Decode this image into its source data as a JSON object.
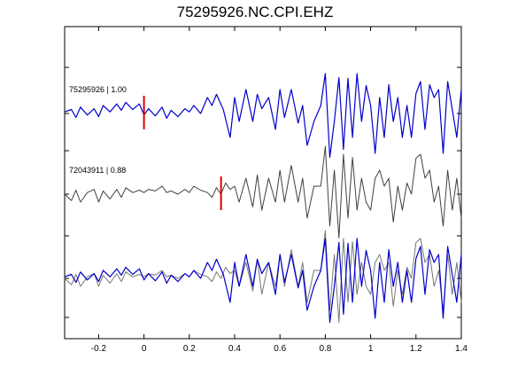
{
  "chart_data": {
    "type": "line",
    "title": "75295926.NC.CPI.EHZ",
    "xlim": [
      -0.35,
      1.4
    ],
    "x_ticks": [
      "-0.2",
      "0",
      "0.2",
      "0.4",
      "0.6",
      "0.8",
      "1",
      "1.2",
      "1.4"
    ],
    "x_tick_values": [
      -0.2,
      0,
      0.2,
      0.4,
      0.6,
      0.8,
      1,
      1.2,
      1.4
    ],
    "grid": false,
    "colors": {
      "master": "#0000cc",
      "other": "#404040",
      "pick": "#dd0000",
      "axis": "#000000"
    },
    "traces": [
      {
        "label": "75295926 | 1.00",
        "color": "master",
        "pick_time": 0.0,
        "row": 0
      },
      {
        "label": "72043911 | 0.88",
        "color": "other",
        "pick_time": 0.34,
        "row": 1
      },
      {
        "label": "",
        "color": "overlay",
        "pick_time": null,
        "row": 2
      }
    ],
    "waveforms": {
      "master_x": [
        -0.35,
        -0.32,
        -0.3,
        -0.28,
        -0.25,
        -0.22,
        -0.2,
        -0.18,
        -0.15,
        -0.12,
        -0.1,
        -0.08,
        -0.05,
        -0.02,
        0.0,
        0.02,
        0.05,
        0.08,
        0.1,
        0.12,
        0.15,
        0.18,
        0.2,
        0.22,
        0.25,
        0.28,
        0.3,
        0.32,
        0.35,
        0.38,
        0.4,
        0.42,
        0.45,
        0.48,
        0.5,
        0.52,
        0.55,
        0.58,
        0.6,
        0.62,
        0.65,
        0.68,
        0.7,
        0.72,
        0.75,
        0.78,
        0.8,
        0.82,
        0.84,
        0.86,
        0.88,
        0.9,
        0.92,
        0.94,
        0.96,
        0.98,
        1.0,
        1.02,
        1.04,
        1.06,
        1.08,
        1.1,
        1.12,
        1.14,
        1.16,
        1.18,
        1.2,
        1.22,
        1.24,
        1.26,
        1.28,
        1.3,
        1.32,
        1.34,
        1.36,
        1.38,
        1.4
      ],
      "master_y": [
        0.02,
        0.05,
        -0.05,
        0.08,
        -0.02,
        0.06,
        -0.04,
        0.1,
        0.02,
        0.12,
        0.04,
        0.14,
        0.05,
        0.12,
        -0.02,
        0.06,
        -0.03,
        0.08,
        -0.06,
        0.04,
        -0.04,
        0.06,
        0.02,
        0.1,
        0.0,
        0.2,
        0.1,
        0.24,
        0.05,
        -0.3,
        0.2,
        -0.1,
        0.3,
        -0.1,
        0.24,
        0.06,
        0.2,
        -0.2,
        0.3,
        -0.05,
        0.3,
        -0.12,
        0.1,
        -0.4,
        -0.1,
        0.1,
        0.5,
        -0.55,
        -0.1,
        0.45,
        -0.45,
        0.44,
        -0.3,
        0.5,
        -0.1,
        0.35,
        0.1,
        -0.5,
        0.2,
        -0.3,
        0.36,
        -0.1,
        0.2,
        -0.3,
        0.1,
        -0.3,
        0.25,
        0.4,
        -0.2,
        0.36,
        0.2,
        0.3,
        -0.5,
        0.4,
        0.05,
        -0.3,
        0.3
      ],
      "other_x": [
        -0.35,
        -0.32,
        -0.3,
        -0.28,
        -0.25,
        -0.22,
        -0.2,
        -0.18,
        -0.15,
        -0.12,
        -0.1,
        -0.08,
        -0.05,
        -0.02,
        0.0,
        0.02,
        0.05,
        0.08,
        0.1,
        0.12,
        0.15,
        0.18,
        0.2,
        0.22,
        0.25,
        0.28,
        0.3,
        0.32,
        0.34,
        0.36,
        0.38,
        0.4,
        0.42,
        0.45,
        0.48,
        0.5,
        0.52,
        0.55,
        0.58,
        0.6,
        0.62,
        0.65,
        0.68,
        0.7,
        0.72,
        0.75,
        0.78,
        0.8,
        0.82,
        0.84,
        0.86,
        0.88,
        0.9,
        0.92,
        0.94,
        0.96,
        0.98,
        1.0,
        1.02,
        1.04,
        1.06,
        1.08,
        1.1,
        1.12,
        1.14,
        1.16,
        1.18,
        1.2,
        1.22,
        1.24,
        1.26,
        1.28,
        1.3,
        1.32,
        1.34,
        1.36,
        1.38,
        1.4
      ],
      "other_y": [
        0.0,
        -0.08,
        0.05,
        -0.1,
        0.02,
        0.06,
        -0.1,
        0.04,
        -0.06,
        0.06,
        -0.04,
        0.08,
        0.02,
        0.05,
        0.02,
        0.06,
        0.04,
        0.1,
        0.02,
        0.04,
        0.0,
        0.06,
        0.02,
        0.1,
        0.05,
        0.02,
        -0.04,
        0.08,
        0.0,
        0.14,
        0.06,
        0.1,
        -0.1,
        0.2,
        -0.16,
        0.24,
        -0.2,
        0.2,
        -0.1,
        0.3,
        -0.1,
        0.36,
        -0.1,
        0.2,
        -0.3,
        0.1,
        0.1,
        0.6,
        -0.4,
        0.3,
        -0.55,
        0.5,
        -0.3,
        0.46,
        -0.2,
        0.2,
        -0.1,
        -0.2,
        0.2,
        0.3,
        0.1,
        0.2,
        -0.35,
        0.1,
        -0.2,
        0.14,
        0.0,
        0.45,
        0.5,
        0.2,
        0.3,
        -0.1,
        0.1,
        -0.4,
        0.3,
        -0.2,
        0.2,
        -0.3
      ]
    }
  }
}
